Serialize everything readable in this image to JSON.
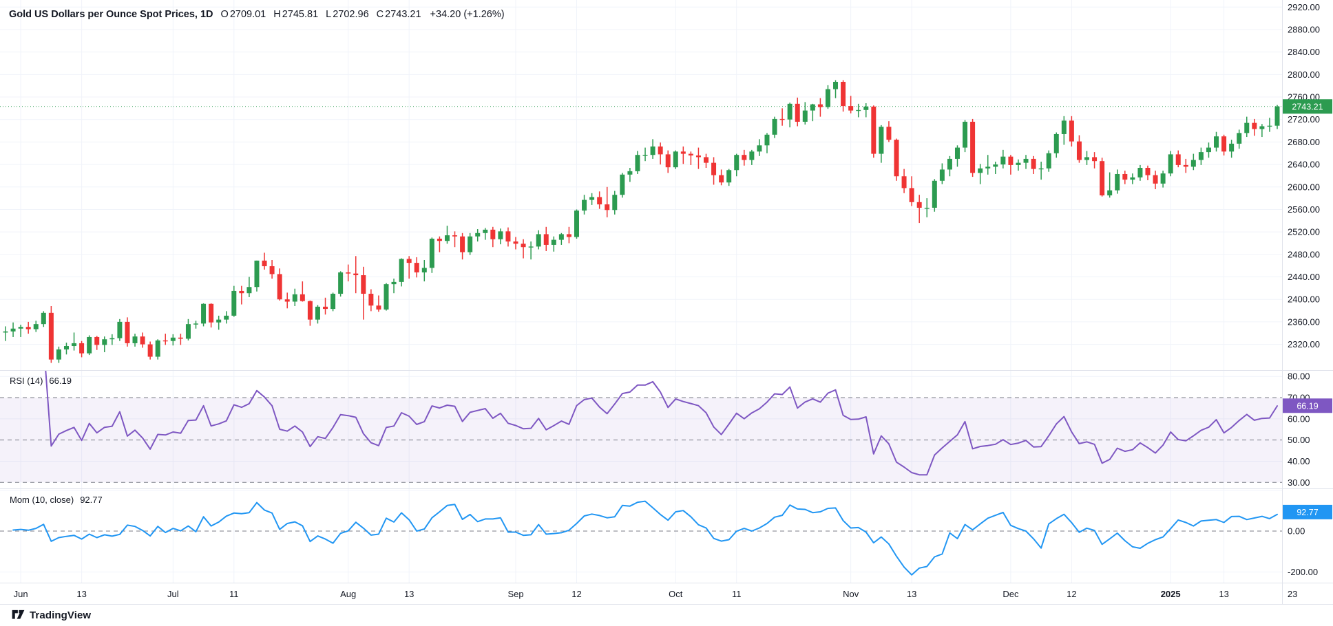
{
  "header": {
    "title": "Gold US Dollars per Ounce Spot Prices, 1D",
    "ohlc": {
      "o_label": "O",
      "o": "2709.01",
      "h_label": "H",
      "h": "2745.81",
      "l_label": "L",
      "l": "2702.96",
      "c_label": "C",
      "c": "2743.21",
      "change": "+34.20 (+1.26%)"
    }
  },
  "legends": {
    "rsi": {
      "title": "RSI (14)",
      "value": "66.19"
    },
    "mom": {
      "title": "Mom (10, close)",
      "value": "92.77"
    }
  },
  "badges": {
    "price": "2743.21",
    "rsi": "66.19",
    "mom": "92.77"
  },
  "footer": {
    "brand": "TradingView"
  },
  "colors": {
    "up": "#2c9b50",
    "down": "#ef3434",
    "rsi_line": "#7e57c2",
    "rsi_band": "rgba(126,87,194,0.08)",
    "mom_line": "#2196f3",
    "grid": "#f0f3fa",
    "separator": "#e0e3eb",
    "dashed": "#787b86",
    "axis_text": "#131722",
    "value_text": "#2c9b50",
    "badge_text": "#ffffff"
  },
  "chart_data": {
    "type": "candlestick",
    "title": "Gold US Dollars per Ounce Spot Prices, 1D",
    "interval": "1D",
    "last_price": 2743.21,
    "price_axis": {
      "min": 2320,
      "max": 2920,
      "step": 40,
      "pane_value_range": [
        2274.2,
        2932.6
      ]
    },
    "time_ticks": [
      {
        "label": "Jun",
        "date": "2024-06-03"
      },
      {
        "label": "13",
        "date": "2024-06-13"
      },
      {
        "label": "Jul",
        "date": "2024-07-01"
      },
      {
        "label": "11",
        "date": "2024-07-11"
      },
      {
        "label": "Aug",
        "date": "2024-08-01"
      },
      {
        "label": "13",
        "date": "2024-08-13"
      },
      {
        "label": "Sep",
        "date": "2024-09-02"
      },
      {
        "label": "12",
        "date": "2024-09-12"
      },
      {
        "label": "Oct",
        "date": "2024-10-01"
      },
      {
        "label": "11",
        "date": "2024-10-11"
      },
      {
        "label": "Nov",
        "date": "2024-11-01"
      },
      {
        "label": "13",
        "date": "2024-11-13"
      },
      {
        "label": "Dec",
        "date": "2024-12-02"
      },
      {
        "label": "12",
        "date": "2024-12-12"
      },
      {
        "label": "2025",
        "date": "2025-01-02",
        "bold": true
      },
      {
        "label": "13",
        "date": "2025-01-13"
      },
      {
        "label": "23",
        "date": "2025-01-23"
      }
    ],
    "indicators": [
      {
        "name": "RSI",
        "params": "(14)",
        "period": 14,
        "display_value": 66.19,
        "axis_ticks": [
          80,
          70,
          60,
          50,
          40,
          30
        ],
        "dashed_levels": [
          70,
          50,
          30
        ],
        "grid_levels": [
          80,
          60,
          40
        ],
        "band": [
          30,
          70
        ],
        "pane_value_range": [
          27.16,
          82.99
        ]
      },
      {
        "name": "Mom",
        "params": "(10, close)",
        "period": 10,
        "display_value": 92.77,
        "axis_ticks": [
          0,
          -200
        ],
        "dashed_levels": [
          0
        ],
        "grid_levels": [
          200,
          -200
        ],
        "pane_value_range": [
          -252.1,
          208.4
        ]
      }
    ],
    "candles": [
      [
        "2024-05-30",
        2341,
        2352,
        2326,
        2343
      ],
      [
        "2024-05-31",
        2343,
        2359,
        2333,
        2348
      ],
      [
        "2024-06-03",
        2348,
        2355,
        2333,
        2351
      ],
      [
        "2024-06-04",
        2351,
        2360,
        2339,
        2347
      ],
      [
        "2024-06-05",
        2347,
        2362,
        2342,
        2356
      ],
      [
        "2024-06-06",
        2356,
        2379,
        2351,
        2376
      ],
      [
        "2024-06-07",
        2376,
        2388,
        2287,
        2293
      ],
      [
        "2024-06-10",
        2293,
        2316,
        2287,
        2311
      ],
      [
        "2024-06-11",
        2311,
        2323,
        2302,
        2317
      ],
      [
        "2024-06-12",
        2317,
        2341,
        2309,
        2322
      ],
      [
        "2024-06-13",
        2322,
        2326,
        2297,
        2304
      ],
      [
        "2024-06-14",
        2304,
        2336,
        2301,
        2333
      ],
      [
        "2024-06-17",
        2333,
        2335,
        2310,
        2319
      ],
      [
        "2024-06-18",
        2319,
        2334,
        2306,
        2329
      ],
      [
        "2024-06-19",
        2329,
        2338,
        2319,
        2331
      ],
      [
        "2024-06-20",
        2331,
        2365,
        2326,
        2360
      ],
      [
        "2024-06-21",
        2360,
        2368,
        2316,
        2322
      ],
      [
        "2024-06-24",
        2322,
        2339,
        2316,
        2334
      ],
      [
        "2024-06-25",
        2334,
        2341,
        2314,
        2320
      ],
      [
        "2024-06-26",
        2320,
        2325,
        2293,
        2298
      ],
      [
        "2024-06-27",
        2298,
        2329,
        2293,
        2327
      ],
      [
        "2024-06-28",
        2327,
        2339,
        2319,
        2326
      ],
      [
        "2024-07-01",
        2326,
        2338,
        2318,
        2332
      ],
      [
        "2024-07-02",
        2332,
        2339,
        2319,
        2330
      ],
      [
        "2024-07-03",
        2330,
        2365,
        2327,
        2356
      ],
      [
        "2024-07-04",
        2356,
        2362,
        2348,
        2357
      ],
      [
        "2024-07-05",
        2357,
        2393,
        2352,
        2392
      ],
      [
        "2024-07-08",
        2392,
        2393,
        2350,
        2359
      ],
      [
        "2024-07-09",
        2359,
        2371,
        2346,
        2364
      ],
      [
        "2024-07-10",
        2364,
        2379,
        2357,
        2371
      ],
      [
        "2024-07-11",
        2371,
        2424,
        2369,
        2415
      ],
      [
        "2024-07-12",
        2415,
        2424,
        2391,
        2411
      ],
      [
        "2024-07-15",
        2411,
        2440,
        2404,
        2422
      ],
      [
        "2024-07-16",
        2422,
        2469,
        2414,
        2469
      ],
      [
        "2024-07-17",
        2469,
        2483,
        2453,
        2459
      ],
      [
        "2024-07-18",
        2459,
        2470,
        2437,
        2445
      ],
      [
        "2024-07-19",
        2445,
        2455,
        2398,
        2400
      ],
      [
        "2024-07-22",
        2400,
        2412,
        2384,
        2396
      ],
      [
        "2024-07-23",
        2396,
        2419,
        2388,
        2409
      ],
      [
        "2024-07-24",
        2409,
        2432,
        2396,
        2397
      ],
      [
        "2024-07-25",
        2397,
        2398,
        2353,
        2364
      ],
      [
        "2024-07-26",
        2364,
        2390,
        2357,
        2387
      ],
      [
        "2024-07-29",
        2387,
        2403,
        2373,
        2383
      ],
      [
        "2024-07-30",
        2383,
        2412,
        2379,
        2410
      ],
      [
        "2024-07-31",
        2410,
        2450,
        2405,
        2448
      ],
      [
        "2024-08-01",
        2448,
        2462,
        2432,
        2446
      ],
      [
        "2024-08-02",
        2446,
        2477,
        2411,
        2443
      ],
      [
        "2024-08-05",
        2443,
        2458,
        2364,
        2410
      ],
      [
        "2024-08-06",
        2410,
        2418,
        2379,
        2389
      ],
      [
        "2024-08-07",
        2389,
        2407,
        2378,
        2382
      ],
      [
        "2024-08-08",
        2382,
        2429,
        2380,
        2427
      ],
      [
        "2024-08-09",
        2427,
        2437,
        2411,
        2431
      ],
      [
        "2024-08-12",
        2431,
        2473,
        2423,
        2472
      ],
      [
        "2024-08-13",
        2472,
        2477,
        2437,
        2465
      ],
      [
        "2024-08-14",
        2465,
        2475,
        2439,
        2448
      ],
      [
        "2024-08-15",
        2448,
        2470,
        2432,
        2456
      ],
      [
        "2024-08-16",
        2456,
        2510,
        2447,
        2508
      ],
      [
        "2024-08-19",
        2508,
        2512,
        2484,
        2504
      ],
      [
        "2024-08-20",
        2504,
        2531,
        2499,
        2514
      ],
      [
        "2024-08-21",
        2514,
        2521,
        2493,
        2512
      ],
      [
        "2024-08-22",
        2512,
        2518,
        2471,
        2484
      ],
      [
        "2024-08-23",
        2484,
        2518,
        2479,
        2512
      ],
      [
        "2024-08-26",
        2512,
        2525,
        2503,
        2518
      ],
      [
        "2024-08-27",
        2518,
        2527,
        2506,
        2524
      ],
      [
        "2024-08-28",
        2524,
        2529,
        2493,
        2507
      ],
      [
        "2024-08-29",
        2507,
        2526,
        2498,
        2521
      ],
      [
        "2024-08-30",
        2521,
        2528,
        2494,
        2503
      ],
      [
        "2024-09-02",
        2503,
        2511,
        2489,
        2499
      ],
      [
        "2024-09-03",
        2499,
        2507,
        2473,
        2493
      ],
      [
        "2024-09-04",
        2493,
        2503,
        2471,
        2494
      ],
      [
        "2024-09-05",
        2494,
        2523,
        2489,
        2516
      ],
      [
        "2024-09-06",
        2516,
        2529,
        2486,
        2497
      ],
      [
        "2024-09-09",
        2497,
        2512,
        2485,
        2506
      ],
      [
        "2024-09-10",
        2506,
        2518,
        2497,
        2516
      ],
      [
        "2024-09-11",
        2516,
        2529,
        2500,
        2511
      ],
      [
        "2024-09-12",
        2511,
        2560,
        2508,
        2558
      ],
      [
        "2024-09-13",
        2558,
        2586,
        2551,
        2577
      ],
      [
        "2024-09-16",
        2577,
        2589,
        2568,
        2582
      ],
      [
        "2024-09-17",
        2582,
        2592,
        2561,
        2569
      ],
      [
        "2024-09-18",
        2569,
        2600,
        2546,
        2559
      ],
      [
        "2024-09-19",
        2559,
        2593,
        2551,
        2586
      ],
      [
        "2024-09-20",
        2586,
        2625,
        2581,
        2622
      ],
      [
        "2024-09-23",
        2622,
        2634,
        2609,
        2628
      ],
      [
        "2024-09-24",
        2628,
        2664,
        2623,
        2657
      ],
      [
        "2024-09-25",
        2657,
        2670,
        2646,
        2657
      ],
      [
        "2024-09-26",
        2657,
        2685,
        2650,
        2672
      ],
      [
        "2024-09-27",
        2672,
        2679,
        2640,
        2658
      ],
      [
        "2024-09-30",
        2658,
        2665,
        2625,
        2635
      ],
      [
        "2024-10-01",
        2635,
        2665,
        2632,
        2663
      ],
      [
        "2024-10-02",
        2663,
        2672,
        2641,
        2659
      ],
      [
        "2024-10-03",
        2659,
        2663,
        2639,
        2656
      ],
      [
        "2024-10-04",
        2656,
        2670,
        2632,
        2653
      ],
      [
        "2024-10-07",
        2653,
        2659,
        2634,
        2643
      ],
      [
        "2024-10-08",
        2643,
        2653,
        2604,
        2621
      ],
      [
        "2024-10-09",
        2621,
        2631,
        2603,
        2608
      ],
      [
        "2024-10-10",
        2608,
        2632,
        2602,
        2630
      ],
      [
        "2024-10-11",
        2630,
        2659,
        2619,
        2657
      ],
      [
        "2024-10-14",
        2657,
        2666,
        2638,
        2648
      ],
      [
        "2024-10-15",
        2648,
        2666,
        2639,
        2663
      ],
      [
        "2024-10-16",
        2663,
        2685,
        2655,
        2674
      ],
      [
        "2024-10-17",
        2674,
        2696,
        2660,
        2693
      ],
      [
        "2024-10-18",
        2693,
        2725,
        2687,
        2721
      ],
      [
        "2024-10-21",
        2721,
        2740,
        2709,
        2720
      ],
      [
        "2024-10-22",
        2720,
        2750,
        2706,
        2748
      ],
      [
        "2024-10-23",
        2748,
        2759,
        2708,
        2716
      ],
      [
        "2024-10-24",
        2716,
        2751,
        2711,
        2736
      ],
      [
        "2024-10-25",
        2736,
        2748,
        2717,
        2747
      ],
      [
        "2024-10-28",
        2747,
        2758,
        2725,
        2742
      ],
      [
        "2024-10-29",
        2742,
        2781,
        2739,
        2774
      ],
      [
        "2024-10-30",
        2774,
        2790,
        2758,
        2787
      ],
      [
        "2024-10-31",
        2787,
        2790,
        2734,
        2744
      ],
      [
        "2024-11-01",
        2744,
        2762,
        2731,
        2736
      ],
      [
        "2024-11-04",
        2736,
        2748,
        2724,
        2737
      ],
      [
        "2024-11-05",
        2737,
        2749,
        2724,
        2743
      ],
      [
        "2024-11-06",
        2743,
        2745,
        2652,
        2659
      ],
      [
        "2024-11-07",
        2659,
        2710,
        2643,
        2707
      ],
      [
        "2024-11-08",
        2707,
        2717,
        2680,
        2684
      ],
      [
        "2024-11-11",
        2684,
        2686,
        2611,
        2619
      ],
      [
        "2024-11-12",
        2619,
        2632,
        2589,
        2598
      ],
      [
        "2024-11-13",
        2598,
        2619,
        2566,
        2573
      ],
      [
        "2024-11-14",
        2573,
        2586,
        2536,
        2563
      ],
      [
        "2024-11-15",
        2563,
        2580,
        2546,
        2563
      ],
      [
        "2024-11-18",
        2563,
        2614,
        2556,
        2611
      ],
      [
        "2024-11-19",
        2611,
        2642,
        2605,
        2631
      ],
      [
        "2024-11-20",
        2631,
        2655,
        2619,
        2650
      ],
      [
        "2024-11-21",
        2650,
        2674,
        2636,
        2670
      ],
      [
        "2024-11-22",
        2670,
        2719,
        2662,
        2716
      ],
      [
        "2024-11-25",
        2716,
        2721,
        2618,
        2625
      ],
      [
        "2024-11-26",
        2625,
        2641,
        2605,
        2633
      ],
      [
        "2024-11-27",
        2633,
        2657,
        2622,
        2636
      ],
      [
        "2024-11-28",
        2636,
        2645,
        2623,
        2640
      ],
      [
        "2024-11-29",
        2640,
        2666,
        2633,
        2654
      ],
      [
        "2024-12-02",
        2654,
        2657,
        2622,
        2639
      ],
      [
        "2024-12-03",
        2639,
        2649,
        2629,
        2643
      ],
      [
        "2024-12-04",
        2643,
        2657,
        2632,
        2650
      ],
      [
        "2024-12-05",
        2650,
        2655,
        2623,
        2632
      ],
      [
        "2024-12-06",
        2632,
        2645,
        2613,
        2633
      ],
      [
        "2024-12-09",
        2633,
        2665,
        2627,
        2660
      ],
      [
        "2024-12-10",
        2660,
        2697,
        2652,
        2694
      ],
      [
        "2024-12-11",
        2694,
        2726,
        2675,
        2718
      ],
      [
        "2024-12-12",
        2718,
        2726,
        2672,
        2681
      ],
      [
        "2024-12-13",
        2681,
        2692,
        2643,
        2648
      ],
      [
        "2024-12-16",
        2648,
        2664,
        2639,
        2653
      ],
      [
        "2024-12-17",
        2653,
        2662,
        2633,
        2646
      ],
      [
        "2024-12-18",
        2646,
        2652,
        2583,
        2585
      ],
      [
        "2024-12-19",
        2585,
        2626,
        2581,
        2594
      ],
      [
        "2024-12-20",
        2594,
        2631,
        2588,
        2623
      ],
      [
        "2024-12-23",
        2623,
        2629,
        2605,
        2613
      ],
      [
        "2024-12-24",
        2613,
        2624,
        2605,
        2617
      ],
      [
        "2024-12-26",
        2617,
        2639,
        2611,
        2634
      ],
      [
        "2024-12-27",
        2634,
        2638,
        2612,
        2621
      ],
      [
        "2024-12-30",
        2621,
        2629,
        2596,
        2606
      ],
      [
        "2024-12-31",
        2606,
        2629,
        2599,
        2624
      ],
      [
        "2025-01-02",
        2624,
        2664,
        2619,
        2658
      ],
      [
        "2025-01-03",
        2658,
        2665,
        2635,
        2639
      ],
      [
        "2025-01-06",
        2639,
        2650,
        2625,
        2636
      ],
      [
        "2025-01-07",
        2636,
        2659,
        2630,
        2648
      ],
      [
        "2025-01-08",
        2648,
        2670,
        2639,
        2662
      ],
      [
        "2025-01-09",
        2662,
        2679,
        2652,
        2670
      ],
      [
        "2025-01-10",
        2670,
        2698,
        2663,
        2690
      ],
      [
        "2025-01-13",
        2690,
        2693,
        2656,
        2663
      ],
      [
        "2025-01-14",
        2663,
        2684,
        2652,
        2677
      ],
      [
        "2025-01-15",
        2677,
        2702,
        2668,
        2696
      ],
      [
        "2025-01-16",
        2696,
        2725,
        2689,
        2714
      ],
      [
        "2025-01-17",
        2714,
        2721,
        2691,
        2703
      ],
      [
        "2025-01-20",
        2703,
        2712,
        2689,
        2708
      ],
      [
        "2025-01-21",
        2708,
        2723,
        2698,
        2709
      ],
      [
        "2025-01-22",
        2709.01,
        2745.81,
        2702.96,
        2743.21
      ]
    ]
  }
}
